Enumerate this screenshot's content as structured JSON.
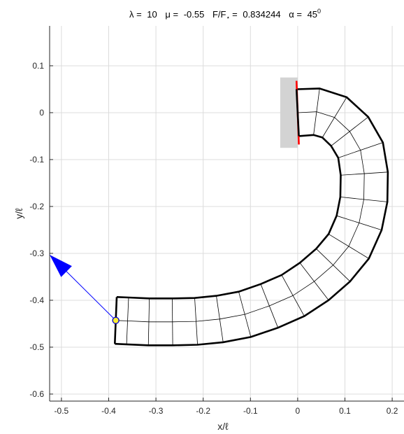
{
  "chart_data": {
    "type": "line",
    "title": {
      "lambda_label": "λ =",
      "lambda": "10",
      "mu_label": "μ =",
      "mu": "-0.55",
      "force_label": "F/F",
      "force_sub": "⋆",
      "force_eq": "=",
      "force": "0.834244",
      "alpha_label": "α =",
      "alpha": "45",
      "alpha_sup": "0"
    },
    "xlabel": "x/ℓ",
    "ylabel": "y/ℓ",
    "xlim": [
      -0.525,
      0.225
    ],
    "ylim": [
      -0.615,
      0.185
    ],
    "grid": true,
    "xticks": [
      -0.5,
      -0.4,
      -0.3,
      -0.2,
      -0.1,
      0,
      0.1,
      0.2
    ],
    "yticks": [
      0.1,
      0,
      -0.1,
      -0.2,
      -0.3,
      -0.4,
      -0.5,
      -0.6
    ],
    "xtick_labels": [
      "-0.5",
      "-0.4",
      "-0.3",
      "-0.2",
      "-0.1",
      "0",
      "0.1",
      "0.2"
    ],
    "ytick_labels": [
      "0.1",
      "0",
      "-0.1",
      "-0.2",
      "-0.3",
      "-0.4",
      "-0.5",
      "-0.6"
    ],
    "rod": {
      "half_width": 0.05,
      "centerline": [
        [
          0.0,
          0.0
        ],
        [
          0.04,
          0.002
        ],
        [
          0.078,
          -0.01
        ],
        [
          0.11,
          -0.04
        ],
        [
          0.133,
          -0.08
        ],
        [
          0.141,
          -0.13
        ],
        [
          0.14,
          -0.185
        ],
        [
          0.13,
          -0.235
        ],
        [
          0.108,
          -0.285
        ],
        [
          0.075,
          -0.325
        ],
        [
          0.035,
          -0.36
        ],
        [
          -0.01,
          -0.39
        ],
        [
          -0.06,
          -0.412
        ],
        [
          -0.112,
          -0.43
        ],
        [
          -0.165,
          -0.44
        ],
        [
          -0.215,
          -0.445
        ],
        [
          -0.265,
          -0.446
        ],
        [
          -0.315,
          -0.446
        ],
        [
          -0.36,
          -0.444
        ],
        [
          -0.385,
          -0.443
        ]
      ]
    },
    "clamp": {
      "x0": -0.037,
      "x1": 0.0,
      "y0": -0.075,
      "y1": 0.075,
      "color": "#d3d3d3"
    },
    "clamp_edge_color": "#ff0000",
    "force_arrow": {
      "start": [
        -0.385,
        -0.443
      ],
      "end": [
        -0.525,
        -0.303
      ],
      "color": "#0000ff"
    },
    "load_point": {
      "x": -0.385,
      "y": -0.443,
      "color": "#ffee33"
    }
  }
}
